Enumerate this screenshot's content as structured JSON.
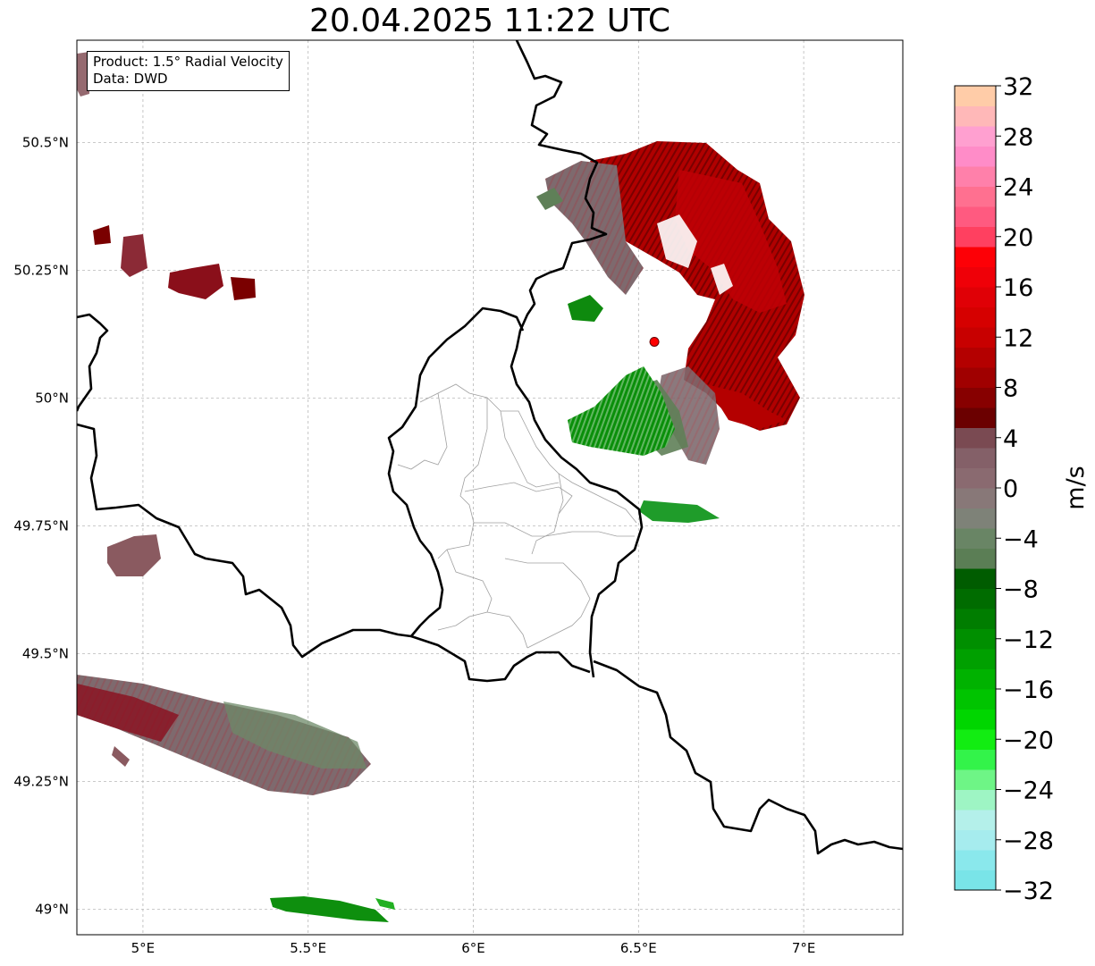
{
  "title": "20.04.2025 11:22 UTC",
  "info_box": {
    "product_line": "Product: 1.5° Radial Velocity",
    "data_line": "Data: DWD"
  },
  "map": {
    "extent": {
      "lon_min": 4.8,
      "lon_max": 7.3,
      "lat_min": 48.95,
      "lat_max": 50.7
    },
    "lon_ticks": [
      {
        "value": 5.0,
        "label": "5°E"
      },
      {
        "value": 5.5,
        "label": "5.5°E"
      },
      {
        "value": 6.0,
        "label": "6°E"
      },
      {
        "value": 6.5,
        "label": "6.5°E"
      },
      {
        "value": 7.0,
        "label": "7°E"
      }
    ],
    "lat_ticks": [
      {
        "value": 50.5,
        "label": "50.5°N"
      },
      {
        "value": 50.25,
        "label": "50.25°N"
      },
      {
        "value": 50.0,
        "label": "50°N"
      },
      {
        "value": 49.75,
        "label": "49.75°N"
      },
      {
        "value": 49.5,
        "label": "49.5°N"
      },
      {
        "value": 49.25,
        "label": "49.25°N"
      },
      {
        "value": 49.0,
        "label": "49°N"
      }
    ],
    "gridlines": true,
    "radar_site": {
      "lon": 6.548,
      "lat": 50.11,
      "color": "#ff0000"
    },
    "border_color": "#000000",
    "subborder_color": "#a0a0a0"
  },
  "colorbar": {
    "label": "m/s",
    "vmin": -32,
    "vmax": 32,
    "tick_labels": [
      "32",
      "28",
      "24",
      "20",
      "16",
      "12",
      "8",
      "4",
      "0",
      "−4",
      "−8",
      "−12",
      "−16",
      "−20",
      "−24",
      "−28",
      "−32"
    ],
    "colors_bottom_to_top": [
      "#79e4e8",
      "#8ae8ec",
      "#a6ecee",
      "#b4f0ea",
      "#9ef5c4",
      "#6ef586",
      "#33f34a",
      "#12ed12",
      "#00d600",
      "#00c400",
      "#00b200",
      "#00a000",
      "#008f00",
      "#007d00",
      "#006c00",
      "#005c00",
      "#5b7e55",
      "#698565",
      "#7e8278",
      "#887878",
      "#8a6a70",
      "#846068",
      "#7a4a52",
      "#6b0000",
      "#870000",
      "#a00000",
      "#b40000",
      "#c80000",
      "#d60000",
      "#e00006",
      "#ef0008",
      "#fd0006",
      "#ff4060",
      "#ff5a80",
      "#ff7090",
      "#ff80aa",
      "#ff8cc8",
      "#ffa0d0",
      "#ffb8b8",
      "#ffcca8"
    ]
  }
}
